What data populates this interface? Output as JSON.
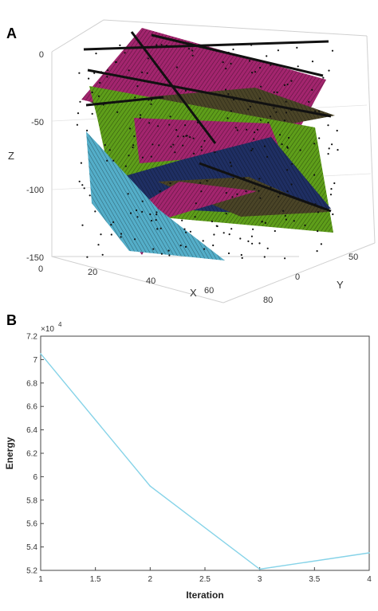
{
  "panels": {
    "a_label": "A",
    "b_label": "B"
  },
  "colors": {
    "magenta": "#a3256e",
    "green": "#5e9e1a",
    "navy": "#1f2f63",
    "cyan": "#54aec9",
    "olive": "#4a4427",
    "line": "#86d3e8",
    "axis": "#333333",
    "grid": "#d9d9d9"
  },
  "chart_data": [
    {
      "type": "scatter",
      "panel": "A",
      "title": "",
      "xlabel": "X",
      "ylabel": "Y",
      "zlabel": "Z",
      "xticks": [
        "0",
        "20",
        "40",
        "60",
        "80"
      ],
      "yticks": [
        "0",
        "50"
      ],
      "zticks": [
        "0",
        "-50",
        "-100",
        "-150"
      ],
      "xlim": [
        0,
        80
      ],
      "ylim": [
        0,
        70
      ],
      "zlim": [
        -150,
        0
      ],
      "surfaces": [
        "magenta",
        "green",
        "navy",
        "cyan",
        "olive"
      ],
      "grid": true,
      "legend": "none"
    },
    {
      "type": "line",
      "panel": "B",
      "title": "",
      "xlabel": "Iteration",
      "ylabel": "Energy",
      "exponent_label": "×10",
      "exponent": "4",
      "x": [
        1,
        2,
        3,
        4
      ],
      "series": [
        {
          "values": [
            7.05,
            5.92,
            5.21,
            5.35
          ]
        }
      ],
      "xlim": [
        1,
        4
      ],
      "ylim": [
        5.2,
        7.2
      ],
      "xticks": [
        "1",
        "1.5",
        "2",
        "2.5",
        "3",
        "3.5",
        "4"
      ],
      "yticks": [
        "5.2",
        "5.4",
        "5.6",
        "5.8",
        "6",
        "6.2",
        "6.4",
        "6.6",
        "6.8",
        "7",
        "7.2"
      ],
      "grid": false,
      "legend": "none"
    }
  ]
}
